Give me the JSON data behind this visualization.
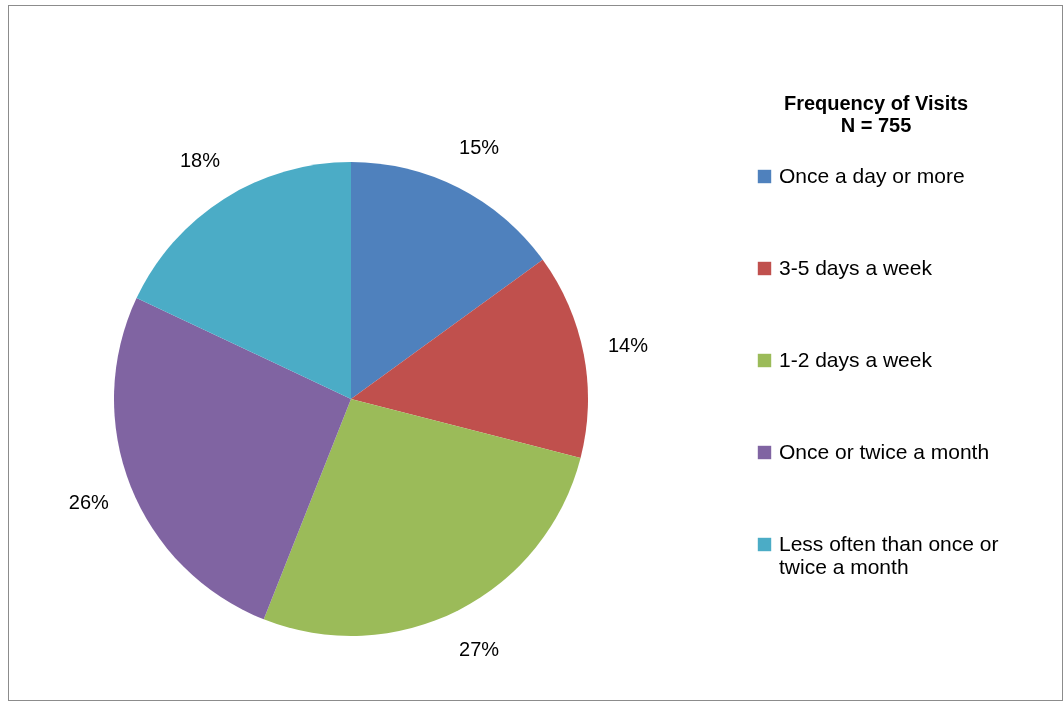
{
  "chart_data": {
    "type": "pie",
    "legend_title": "Frequency of Visits\nN = 755",
    "categories": [
      "Once a day or more",
      "3-5 days a week",
      "1-2 days a week",
      "Once or twice a month",
      "Less often than once or twice a month"
    ],
    "values": [
      15,
      14,
      27,
      26,
      18
    ],
    "value_labels": [
      "15%",
      "14%",
      "27%",
      "26%",
      "18%"
    ],
    "colors": [
      "#4f81bd",
      "#c0504d",
      "#9bbb59",
      "#8064a2",
      "#4bacc6"
    ],
    "legend": "right"
  }
}
